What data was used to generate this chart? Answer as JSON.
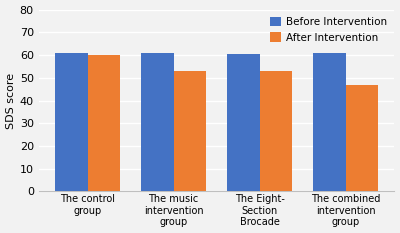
{
  "categories": [
    "The control\ngroup",
    "The music\nintervention\ngroup",
    "The Eight-\nSection\nBrocade",
    "The combined\nintervention\ngroup"
  ],
  "before_values": [
    61,
    61,
    60.5,
    61
  ],
  "after_values": [
    60,
    53,
    53,
    47
  ],
  "before_color": "#4472C4",
  "after_color": "#ED7D31",
  "ylabel": "SDS score",
  "ylim": [
    0,
    80
  ],
  "yticks": [
    0,
    10,
    20,
    30,
    40,
    50,
    60,
    70,
    80
  ],
  "legend_before": "Before Intervention",
  "legend_after": "After Intervention",
  "bar_width": 0.38,
  "background_color": "#f2f2f2",
  "plot_bg_color": "#f2f2f2",
  "grid_color": "#ffffff"
}
